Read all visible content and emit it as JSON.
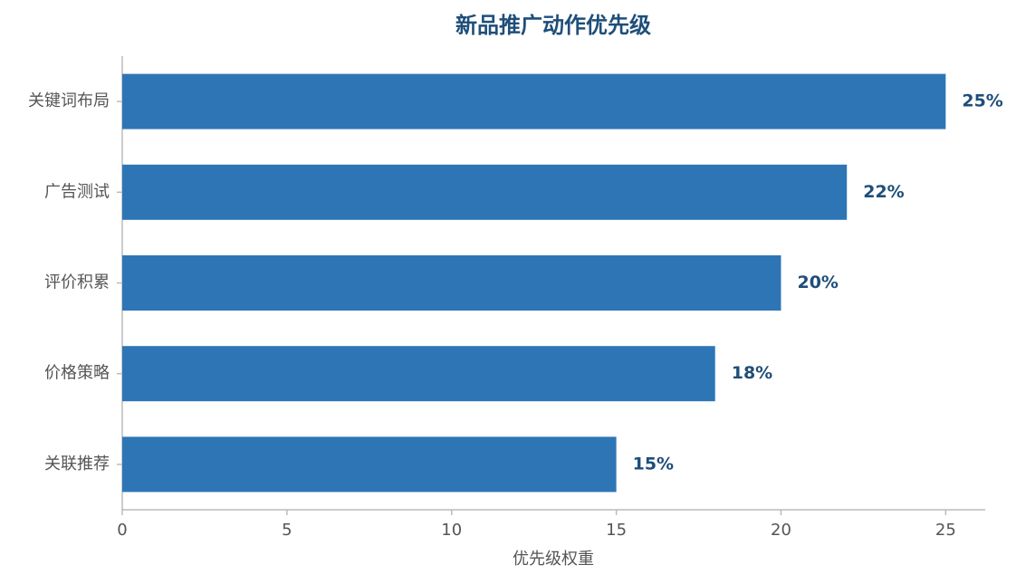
{
  "chart_data": {
    "type": "bar",
    "orientation": "horizontal",
    "title": "新品推广动作优先级",
    "xlabel": "优先级权重",
    "categories": [
      "关键词布局",
      "广告测试",
      "评价积累",
      "价格策略",
      "关联推荐"
    ],
    "values": [
      25,
      22,
      20,
      18,
      15
    ],
    "value_labels": [
      "25%",
      "22%",
      "20%",
      "18%",
      "15%"
    ],
    "color": "#2e75b6",
    "xlim": [
      0,
      26.2
    ],
    "xticks": [
      0,
      5,
      10,
      15,
      20,
      25
    ]
  }
}
